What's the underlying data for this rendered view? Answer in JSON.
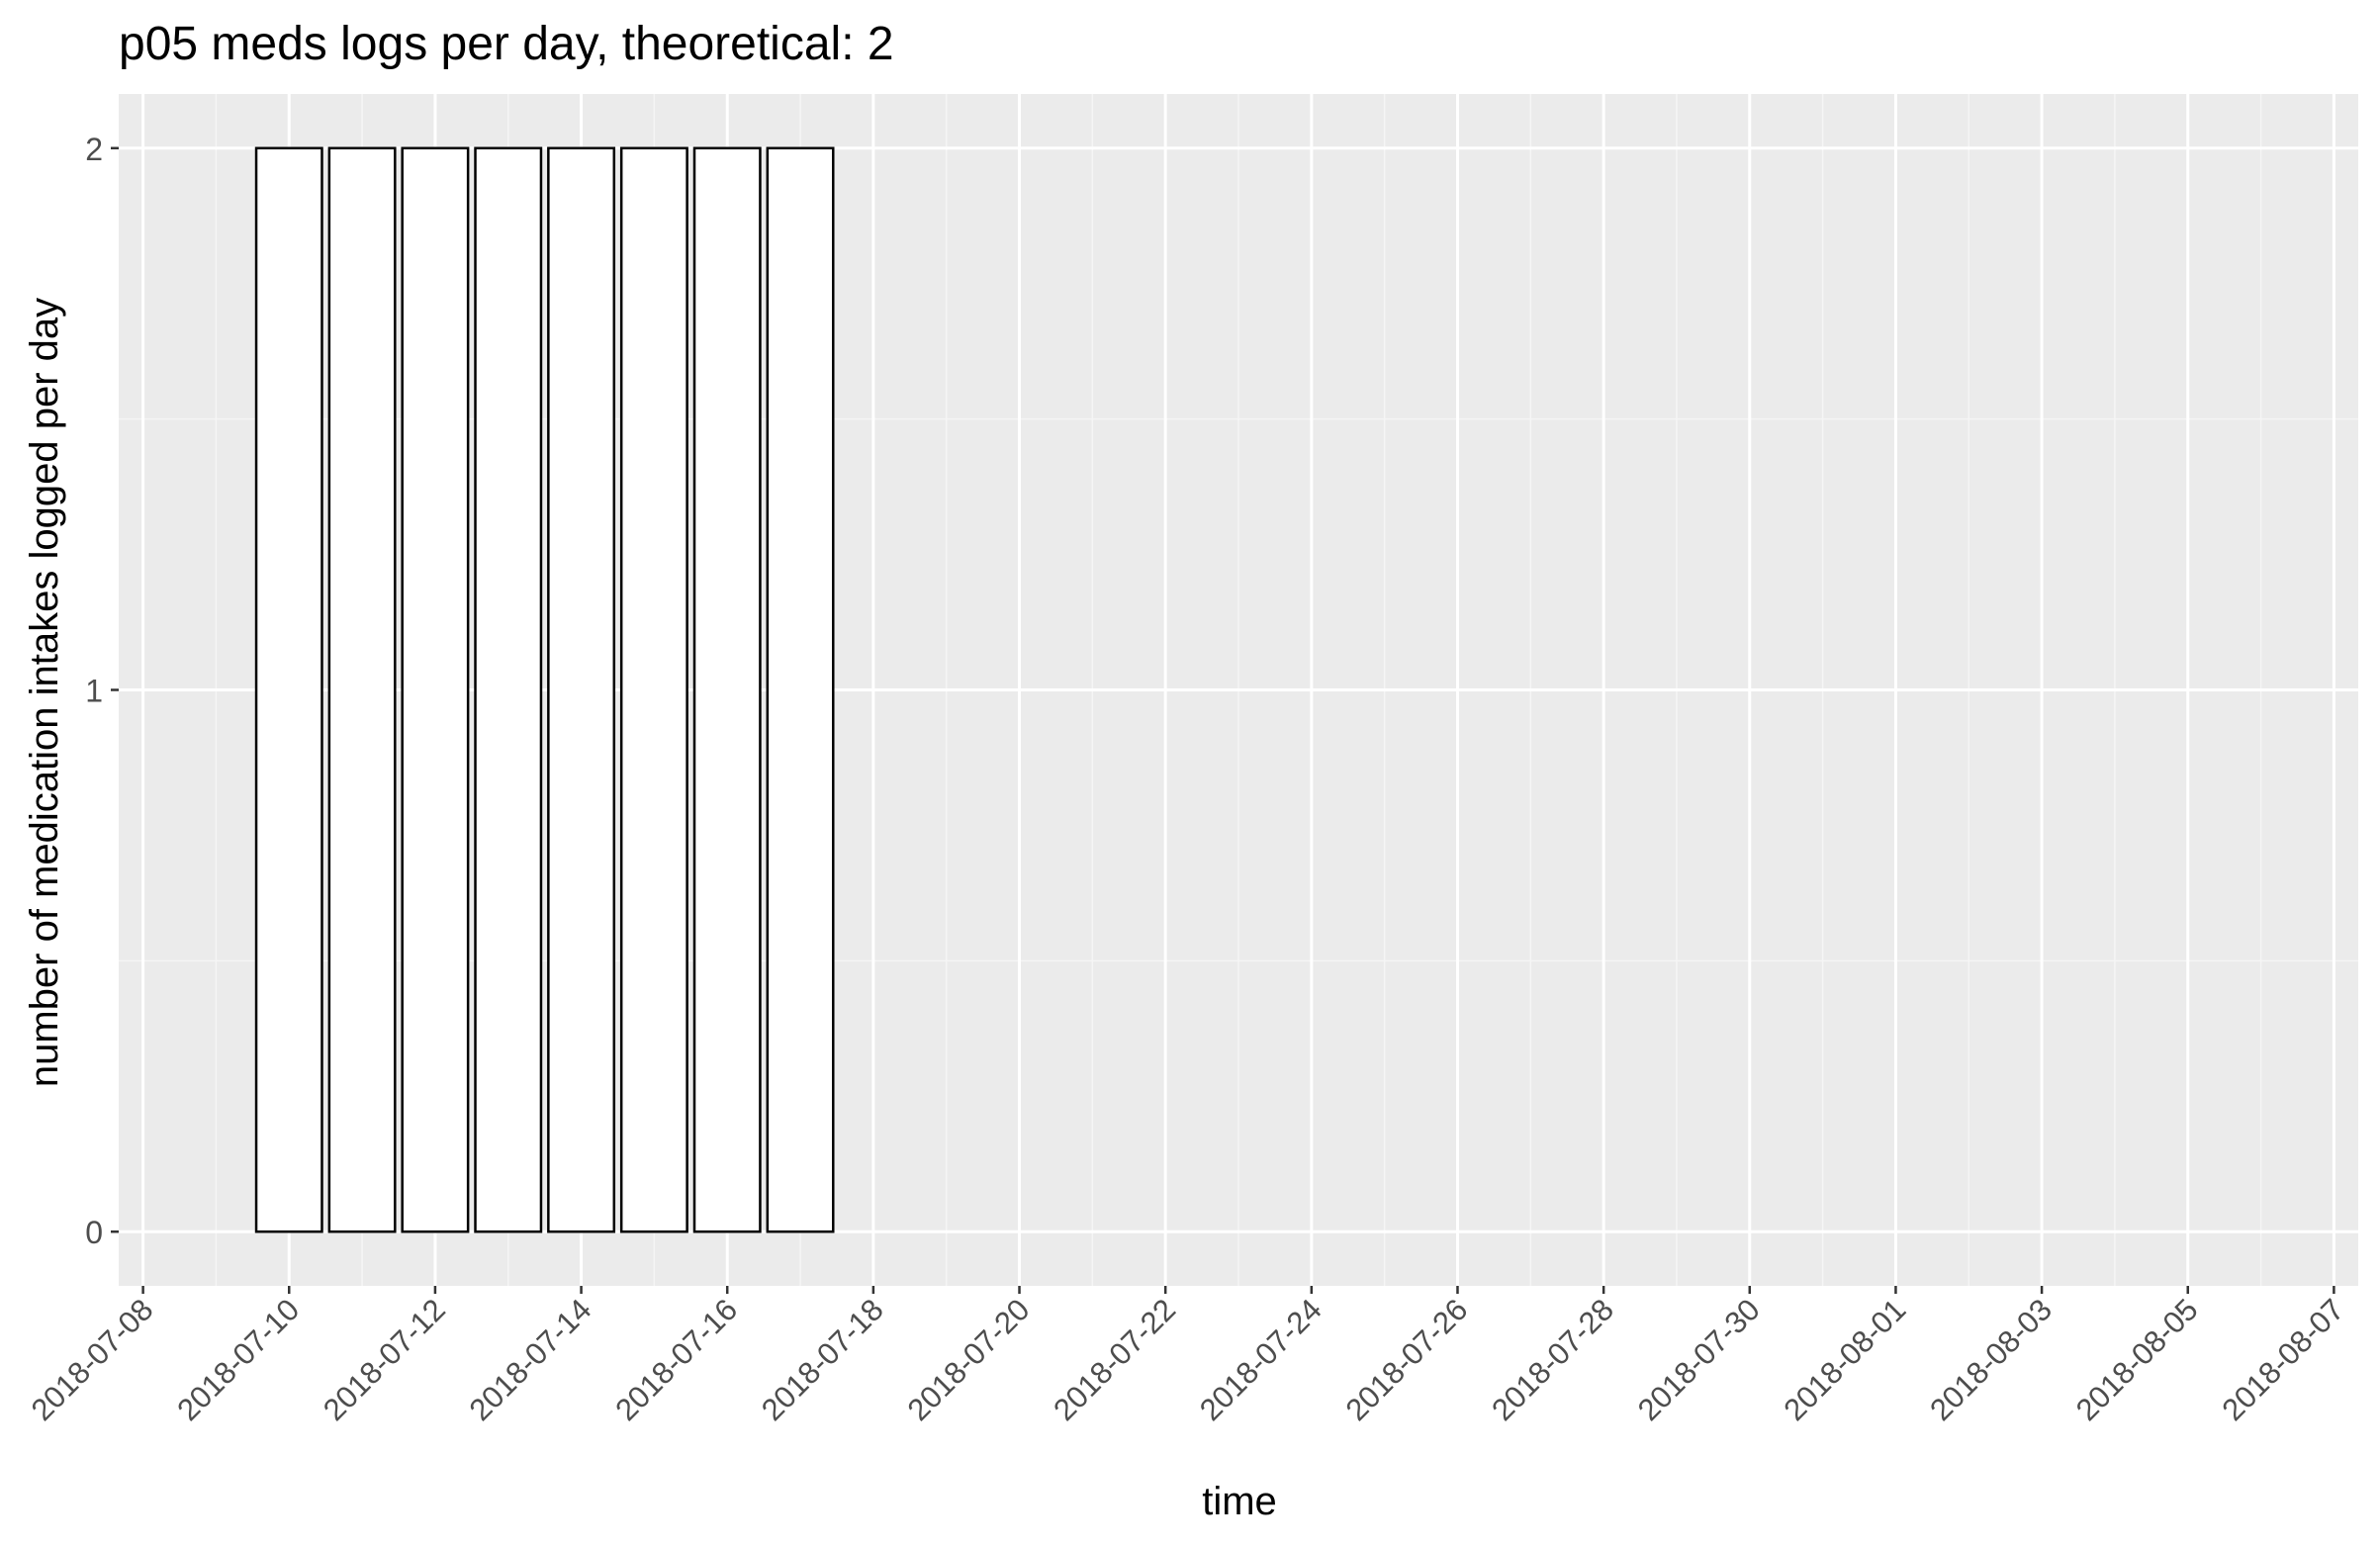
{
  "chart_data": {
    "type": "bar",
    "title": "p05 meds logs per day, theoretical: 2",
    "xlabel": "time",
    "ylabel": "number of medication intakes logged per day",
    "x_axis_type": "date",
    "x_ticks": [
      "2018-07-08",
      "2018-07-10",
      "2018-07-12",
      "2018-07-14",
      "2018-07-16",
      "2018-07-18",
      "2018-07-20",
      "2018-07-22",
      "2018-07-24",
      "2018-07-26",
      "2018-07-28",
      "2018-07-30",
      "2018-08-01",
      "2018-08-03",
      "2018-08-05",
      "2018-08-07"
    ],
    "xlim": [
      "2018-07-07T16:00",
      "2018-08-07T08:00"
    ],
    "y_ticks": [
      0,
      1,
      2
    ],
    "ylim": [
      -0.1,
      2.1
    ],
    "grid": true,
    "legend": "none",
    "categories": [
      "2018-07-10",
      "2018-07-11",
      "2018-07-12",
      "2018-07-13",
      "2018-07-14",
      "2018-07-15",
      "2018-07-16",
      "2018-07-17"
    ],
    "values": [
      2,
      2,
      2,
      2,
      2,
      2,
      2,
      2
    ],
    "colors": {
      "panel_background": "#EBEBEB",
      "grid_major": "#FFFFFF",
      "grid_minor": "#F5F5F5",
      "bar_fill": "#FFFFFF",
      "bar_outline": "#000000",
      "tick_label": "#4D4D4D",
      "tick_mark": "#333333",
      "text": "#000000"
    }
  }
}
